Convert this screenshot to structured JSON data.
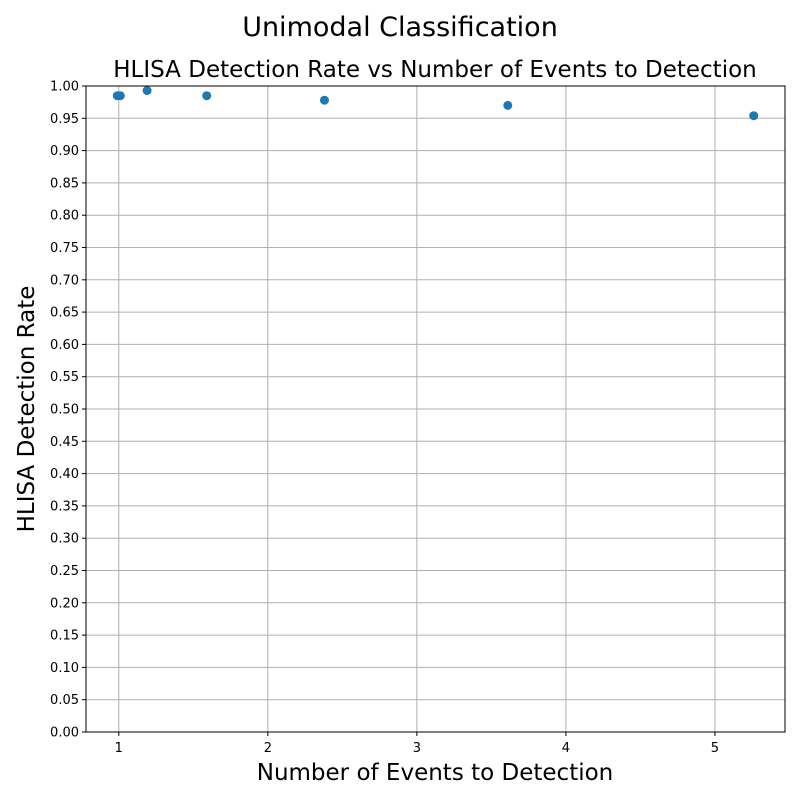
{
  "figure": {
    "suptitle": "Unimodal Classification"
  },
  "chart_data": {
    "type": "scatter",
    "title": "HLISA Detection Rate vs Number of Events to Detection",
    "xlabel": "Number of Events to Detection",
    "ylabel": "HLISA Detection Rate",
    "xlim": [
      0.78,
      5.47
    ],
    "ylim": [
      0.0,
      1.0
    ],
    "xticks": [
      1,
      2,
      3,
      4,
      5
    ],
    "yticks": [
      0.0,
      0.05,
      0.1,
      0.15,
      0.2,
      0.25,
      0.3,
      0.35,
      0.4,
      0.45,
      0.5,
      0.55,
      0.6,
      0.65,
      0.7,
      0.75,
      0.8,
      0.85,
      0.9,
      0.95,
      1.0
    ],
    "grid": true,
    "marker_color": "#1f77b4",
    "points": [
      {
        "x": 0.99,
        "y": 0.985
      },
      {
        "x": 1.01,
        "y": 0.985
      },
      {
        "x": 1.19,
        "y": 0.993
      },
      {
        "x": 1.59,
        "y": 0.985
      },
      {
        "x": 2.38,
        "y": 0.978
      },
      {
        "x": 3.61,
        "y": 0.97
      },
      {
        "x": 5.26,
        "y": 0.954
      }
    ]
  }
}
